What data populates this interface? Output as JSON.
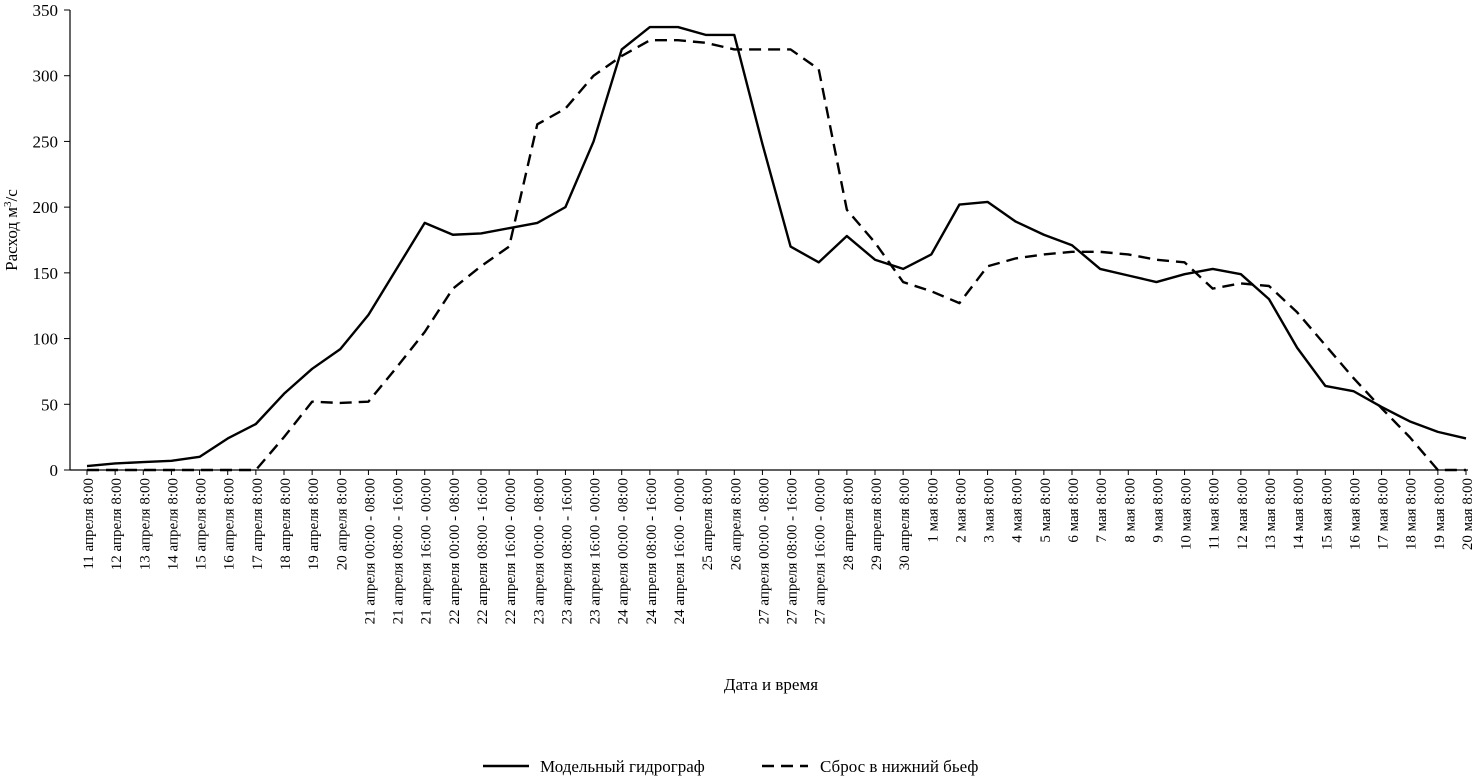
{
  "chart_data": {
    "type": "line",
    "xlabel": "Дата и время",
    "ylabel_main": "Расход м",
    "ylabel_sup": "3",
    "ylabel_tail": "/с",
    "ylim": [
      0,
      350
    ],
    "yticks": [
      0,
      50,
      100,
      150,
      200,
      250,
      300,
      350
    ],
    "grid": false,
    "legend_position": "bottom",
    "categories": [
      "11 апреля 8:00",
      "12 апреля 8:00",
      "13 апреля 8:00",
      "14 апреля 8:00",
      "15 апреля 8:00",
      "16 апреля 8:00",
      "17 апреля 8:00",
      "18 апреля 8:00",
      "19 апреля 8:00",
      "20 апреля 8:00",
      "21 апреля 00:00 - 08:00",
      "21 апреля 08:00 - 16:00",
      "21 апреля 16:00 - 00:00",
      "22 апреля 00:00 - 08:00",
      "22 апреля 08:00 - 16:00",
      "22 апреля 16:00 - 00:00",
      "23 апреля 00:00 - 08:00",
      "23 апреля 08:00 - 16:00",
      "23 апреля 16:00 - 00:00",
      "24 апреля 00:00 - 08:00",
      "24 апреля 08:00 - 16:00",
      "24 апреля 16:00 - 00:00",
      "25 апреля 8:00",
      "26 апреля 8:00",
      "27 апреля 00:00 - 08:00",
      "27 апреля 08:00 - 16:00",
      "27 апреля 16:00 - 00:00",
      "28 апреля 8:00",
      "29 апреля 8:00",
      "30 апреля 8:00",
      "1 мая 8:00",
      "2 мая 8:00",
      "3 мая 8:00",
      "4 мая 8:00",
      "5 мая 8:00",
      "6 мая 8:00",
      "7 мая 8:00",
      "8 мая 8:00",
      "9 мая 8:00",
      "10 мая 8:00",
      "11 мая 8:00",
      "12 мая 8:00",
      "13 мая 8:00",
      "14 мая 8:00",
      "15 мая 8:00",
      "16 мая 8:00",
      "17 мая 8:00",
      "18 мая 8:00",
      "19 мая 8:00",
      "20 мая 8:00"
    ],
    "series": [
      {
        "name": "Модельный гидрограф",
        "style": "solid",
        "color": "#000000",
        "values": [
          3,
          5,
          6,
          7,
          10,
          24,
          35,
          58,
          77,
          92,
          118,
          153,
          188,
          179,
          180,
          184,
          188,
          200,
          250,
          320,
          337,
          337,
          331,
          331,
          248,
          170,
          158,
          178,
          160,
          153,
          164,
          202,
          204,
          189,
          179,
          171,
          153,
          148,
          143,
          149,
          153,
          149,
          130,
          93,
          64,
          60,
          48,
          37,
          29,
          24
        ]
      },
      {
        "name": "Сброс в нижний бьеф",
        "style": "dashed",
        "color": "#000000",
        "values": [
          0,
          0,
          0,
          0,
          0,
          0,
          0,
          25,
          52,
          51,
          52,
          78,
          105,
          138,
          155,
          170,
          263,
          275,
          300,
          315,
          327,
          327,
          325,
          320,
          320,
          320,
          305,
          198,
          173,
          143,
          136,
          127,
          155,
          161,
          164,
          166,
          166,
          164,
          160,
          158,
          138,
          142,
          140,
          120,
          95,
          70,
          47,
          25,
          0,
          0
        ]
      }
    ]
  }
}
